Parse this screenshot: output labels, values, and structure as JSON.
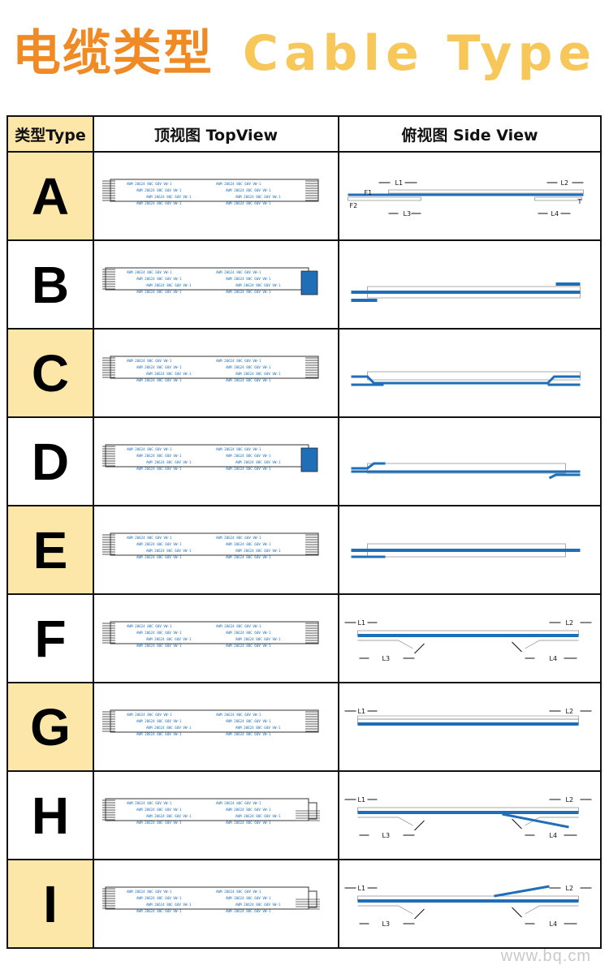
{
  "title": {
    "zh": "电缆类型",
    "en": "Cable Type"
  },
  "table": {
    "headers": [
      "类型Type",
      "顶视图 TopView",
      "俯视图 Side View"
    ],
    "rows": [
      {
        "type": "A",
        "top_end": "plain",
        "side": "A"
      },
      {
        "type": "B",
        "top_end": "blue-stiffener",
        "side": "B"
      },
      {
        "type": "C",
        "top_end": "plain",
        "side": "C"
      },
      {
        "type": "D",
        "top_end": "blue-stiffener",
        "side": "D"
      },
      {
        "type": "E",
        "top_end": "plain",
        "side": "E"
      },
      {
        "type": "F",
        "top_end": "plain",
        "side": "F"
      },
      {
        "type": "G",
        "top_end": "plain",
        "side": "G"
      },
      {
        "type": "H",
        "top_end": "step",
        "side": "H"
      },
      {
        "type": "I",
        "top_end": "step",
        "side": "I"
      }
    ]
  },
  "cable_print": "AWM 20624 80C 60V VW-1",
  "dim_labels": {
    "l1": "L1",
    "l2": "L2",
    "l3": "L3",
    "l4": "L4",
    "t": "T",
    "f1": "F1",
    "f2": "F2"
  },
  "watermark": "www.bq.cm",
  "colors": {
    "title_zh": "#f08a25",
    "title_en": "#f7c75a",
    "type_fill": "#fde7a8",
    "cable_blue": "#1f6fb8"
  }
}
